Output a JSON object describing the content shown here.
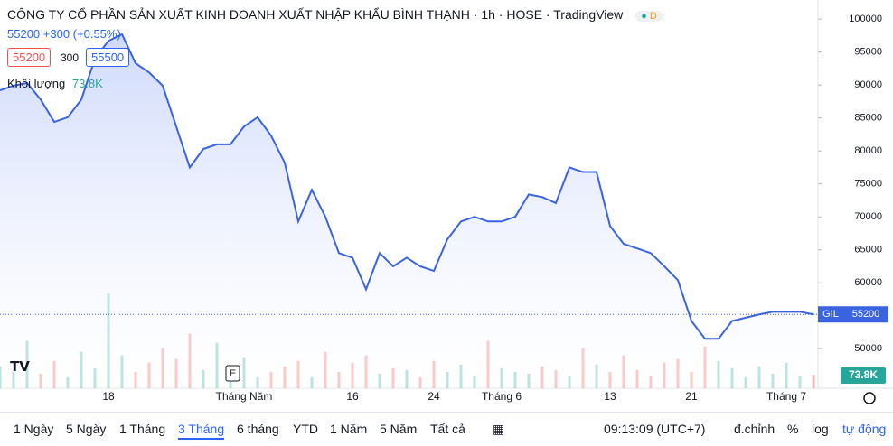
{
  "chart_data": {
    "type": "area",
    "header": {
      "name": "CÔNG TY CỔ PHẦN SẢN XUẤT KINH DOANH XUẤT NHẬP KHẨU BÌNH THẠNH",
      "interval": "1h",
      "exchange": "HOSE",
      "source": "TradingView",
      "badge": "D",
      "price": "55200",
      "change": "+300 (+0.55%)",
      "bid": "55200",
      "spread": "300",
      "ask": "55500",
      "volume_title": "Khối lượng"
    },
    "symbol": "GIL",
    "last_price": 55200,
    "color": "#3a63e0",
    "categories": [
      null,
      null,
      null,
      null,
      null,
      null,
      null,
      null,
      "18",
      null,
      null,
      null,
      null,
      null,
      null,
      null,
      null,
      null,
      "Tháng Năm",
      null,
      null,
      null,
      null,
      null,
      null,
      null,
      "16",
      null,
      null,
      null,
      null,
      null,
      "24",
      null,
      null,
      null,
      null,
      "Tháng 6",
      null,
      null,
      null,
      null,
      null,
      null,
      null,
      "13",
      null,
      null,
      null,
      null,
      null,
      "21",
      null,
      null,
      null,
      null,
      null,
      null,
      "Tháng 7",
      null,
      null
    ],
    "values": [
      89200,
      89900,
      90300,
      87800,
      84400,
      85100,
      87800,
      94000,
      96700,
      97700,
      93300,
      91900,
      89900,
      83700,
      77500,
      80300,
      81000,
      81000,
      83700,
      85100,
      82300,
      78200,
      69300,
      74100,
      70000,
      64500,
      63800,
      59000,
      64500,
      62500,
      63800,
      62500,
      61800,
      66600,
      69300,
      70000,
      69300,
      69300,
      70000,
      73400,
      73000,
      72100,
      77500,
      76800,
      76800,
      68600,
      65900,
      65200,
      64500,
      62500,
      60400,
      54200,
      51500,
      51500,
      54200,
      54700,
      55200,
      55600,
      55600,
      55600,
      55200
    ],
    "volume": {
      "up_color": "#26a69a",
      "down_color": "#ef5350",
      "values": [
        120,
        90,
        260,
        80,
        150,
        60,
        200,
        110,
        520,
        180,
        90,
        140,
        220,
        160,
        300,
        100,
        250,
        80,
        170,
        60,
        90,
        120,
        150,
        60,
        200,
        90,
        140,
        180,
        80,
        110,
        100,
        60,
        150,
        90,
        130,
        70,
        260,
        110,
        90,
        80,
        120,
        100,
        70,
        220,
        130,
        90,
        180,
        100,
        70,
        140,
        160,
        90,
        230,
        150,
        110,
        60,
        120,
        80,
        140,
        70,
        73.8
      ],
      "last": 73.8,
      "last_label": "73.8K"
    },
    "event": "E",
    "ylim": [
      44000,
      102900
    ],
    "yticks": [
      50000,
      55000,
      60000,
      65000,
      70000,
      75000,
      80000,
      85000,
      90000,
      95000,
      100000
    ],
    "toolbar": {
      "ranges": [
        "1 Ngày",
        "5 Ngày",
        "1 Tháng",
        "3 Tháng",
        "6 tháng",
        "YTD",
        "1 Năm",
        "5 Năm",
        "Tất cả"
      ],
      "active": "3 Tháng",
      "time": "09:13:09 (UTC+7)",
      "adjust": "đ.chỉnh",
      "percent": "%",
      "log": "log",
      "auto": "tự động"
    }
  }
}
